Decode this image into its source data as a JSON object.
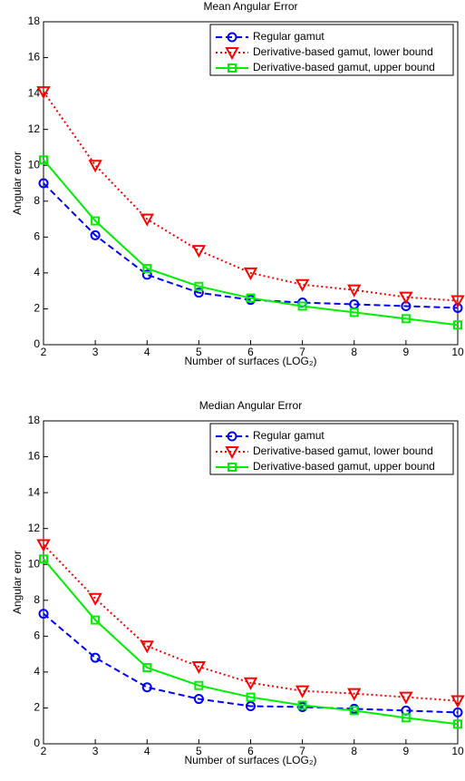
{
  "chart_data": [
    {
      "type": "line",
      "title": "Mean Angular Error",
      "x_label": "Number of surfaces (LOG₂)",
      "y_label": "Angular error",
      "x": [
        2,
        3,
        4,
        5,
        6,
        7,
        8,
        9,
        10
      ],
      "series": [
        {
          "name": "Regular gamut",
          "color": "#0000ff",
          "linestyle": "dashed",
          "marker": "o",
          "values": [
            9.0,
            6.1,
            3.9,
            2.9,
            2.5,
            2.35,
            2.25,
            2.15,
            2.05
          ]
        },
        {
          "name": "Derivative-based gamut, lower bound",
          "color": "#ff0000",
          "linestyle": "dotted",
          "marker": "v",
          "values": [
            14.1,
            10.0,
            7.0,
            5.25,
            4.0,
            3.35,
            3.05,
            2.65,
            2.45
          ]
        },
        {
          "name": "Derivative-based gamut, upper bound",
          "color": "#00ee00",
          "linestyle": "solid",
          "marker": "s",
          "values": [
            10.3,
            6.9,
            4.25,
            3.25,
            2.6,
            2.15,
            1.8,
            1.45,
            1.1
          ]
        }
      ],
      "xlim": [
        2,
        10
      ],
      "xticks": [
        2,
        3,
        4,
        5,
        6,
        7,
        8,
        9,
        10
      ],
      "ylim": [
        0,
        18
      ],
      "yticks": [
        0,
        2,
        4,
        6,
        8,
        10,
        12,
        14,
        16,
        18
      ],
      "legend": "upper right"
    },
    {
      "type": "line",
      "title": "Median Angular Error",
      "x_label": "Number of surfaces (LOG₂)",
      "y_label": "Angular error",
      "x": [
        2,
        3,
        4,
        5,
        6,
        7,
        8,
        9,
        10
      ],
      "series": [
        {
          "name": "Regular gamut",
          "color": "#0000ff",
          "linestyle": "dashed",
          "marker": "o",
          "values": [
            7.25,
            4.8,
            3.15,
            2.5,
            2.1,
            2.05,
            1.95,
            1.85,
            1.75
          ]
        },
        {
          "name": "Derivative-based gamut, lower bound",
          "color": "#ff0000",
          "linestyle": "dotted",
          "marker": "v",
          "values": [
            11.1,
            8.1,
            5.45,
            4.3,
            3.4,
            2.95,
            2.8,
            2.6,
            2.4
          ]
        },
        {
          "name": "Derivative-based gamut, upper bound",
          "color": "#00ee00",
          "linestyle": "solid",
          "marker": "s",
          "values": [
            10.3,
            6.9,
            4.25,
            3.25,
            2.6,
            2.15,
            1.85,
            1.45,
            1.1
          ]
        }
      ],
      "xlim": [
        2,
        10
      ],
      "xticks": [
        2,
        3,
        4,
        5,
        6,
        7,
        8,
        9,
        10
      ],
      "ylim": [
        0,
        18
      ],
      "yticks": [
        0,
        2,
        4,
        6,
        8,
        10,
        12,
        14,
        16,
        18
      ],
      "legend": "upper right"
    }
  ]
}
